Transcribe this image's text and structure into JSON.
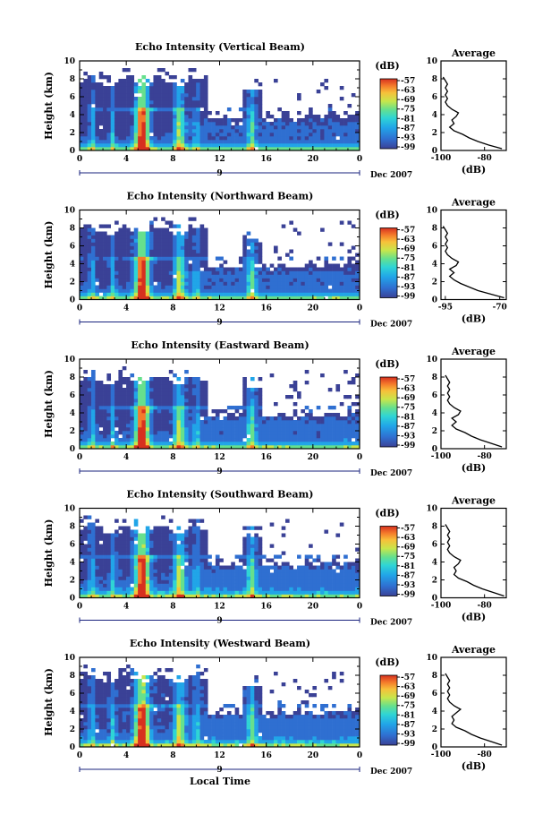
{
  "chart_data": [
    {
      "type": "heatmap",
      "title": "Echo Intensity (Vertical Beam)",
      "ylabel": "Height (km)",
      "xticks": [
        "0",
        "4",
        "8",
        "12",
        "16",
        "20",
        "0"
      ],
      "ylim": [
        0,
        10
      ],
      "yticks": [
        "0",
        "2",
        "4",
        "6",
        "8",
        "10"
      ],
      "date_label": "9",
      "month_label": "Dec 2007",
      "colorbar": {
        "unit": "(dB)",
        "ticks": [
          "-57",
          "-63",
          "-69",
          "-75",
          "-81",
          "-87",
          "-93",
          "-99"
        ]
      },
      "average": {
        "title": "Average",
        "xlabel": "(dB)",
        "xticks": [
          "-100",
          "-80"
        ],
        "xlim": [
          -100,
          -70
        ],
        "heights": [
          0.2,
          0.6,
          1.0,
          1.4,
          1.8,
          2.2,
          2.6,
          3.0,
          3.4,
          3.8,
          4.2,
          4.6,
          5.0,
          5.4,
          5.8,
          6.2,
          6.6,
          7.0,
          7.4,
          7.8,
          8.2
        ],
        "values": [
          -72,
          -78,
          -83,
          -87,
          -90,
          -94,
          -96,
          -94,
          -95,
          -93,
          -92,
          -95,
          -97,
          -98,
          -97,
          -98,
          -97,
          -98,
          -97,
          -98,
          -99
        ]
      }
    },
    {
      "type": "heatmap",
      "title": "Echo Intensity (Northward Beam)",
      "ylabel": "Height (km)",
      "xticks": [
        "0",
        "4",
        "8",
        "12",
        "16",
        "20",
        "0"
      ],
      "ylim": [
        0,
        10
      ],
      "yticks": [
        "0",
        "2",
        "4",
        "6",
        "8",
        "10"
      ],
      "date_label": "9",
      "month_label": "Dec 2007",
      "colorbar": {
        "unit": "(dB)",
        "ticks": [
          "-57",
          "-63",
          "-69",
          "-75",
          "-81",
          "-87",
          "-93",
          "-99"
        ]
      },
      "average": {
        "title": "Average",
        "xlabel": "(dB)",
        "xticks": [
          "-95",
          "-70"
        ],
        "xlim": [
          -97,
          -67
        ],
        "heights": [
          0.2,
          0.6,
          1.0,
          1.4,
          1.8,
          2.2,
          2.6,
          3.0,
          3.4,
          3.8,
          4.2,
          4.6,
          5.0,
          5.4,
          5.8,
          6.2,
          6.6,
          7.0,
          7.4,
          7.8,
          8.2
        ],
        "values": [
          -68,
          -74,
          -80,
          -84,
          -88,
          -91,
          -93,
          -91,
          -93,
          -90,
          -89,
          -92,
          -94,
          -95,
          -94,
          -95,
          -94,
          -95,
          -94,
          -95,
          -96
        ]
      }
    },
    {
      "type": "heatmap",
      "title": "Echo Intensity (Eastward Beam)",
      "ylabel": "Height (km)",
      "xticks": [
        "0",
        "4",
        "8",
        "12",
        "16",
        "20",
        "0"
      ],
      "ylim": [
        0,
        10
      ],
      "yticks": [
        "0",
        "2",
        "4",
        "6",
        "8",
        "10"
      ],
      "date_label": "9",
      "month_label": "Dec 2007",
      "colorbar": {
        "unit": "(dB)",
        "ticks": [
          "-57",
          "-63",
          "-69",
          "-75",
          "-81",
          "-87",
          "-93",
          "-99"
        ]
      },
      "average": {
        "title": "Average",
        "xlabel": "(dB)",
        "xticks": [
          "-100",
          "-80"
        ],
        "xlim": [
          -100,
          -70
        ],
        "heights": [
          0.2,
          0.6,
          1.0,
          1.4,
          1.8,
          2.2,
          2.6,
          3.0,
          3.4,
          3.8,
          4.2,
          4.6,
          5.0,
          5.4,
          5.8,
          6.2,
          6.6,
          7.0,
          7.4,
          7.8,
          8.2
        ],
        "values": [
          -72,
          -77,
          -82,
          -86,
          -89,
          -93,
          -95,
          -93,
          -95,
          -92,
          -91,
          -94,
          -96,
          -97,
          -96,
          -97,
          -96,
          -97,
          -96,
          -97,
          -98
        ]
      }
    },
    {
      "type": "heatmap",
      "title": "Echo Intensity (Southward Beam)",
      "ylabel": "Height (km)",
      "xticks": [
        "0",
        "4",
        "8",
        "12",
        "16",
        "20",
        "0"
      ],
      "ylim": [
        0,
        10
      ],
      "yticks": [
        "0",
        "2",
        "4",
        "6",
        "8",
        "10"
      ],
      "date_label": "9",
      "month_label": "Dec 2007",
      "colorbar": {
        "unit": "(dB)",
        "ticks": [
          "-57",
          "-63",
          "-69",
          "-75",
          "-81",
          "-87",
          "-93",
          "-99"
        ]
      },
      "average": {
        "title": "Average",
        "xlabel": "(dB)",
        "xticks": [
          "-100",
          "-80"
        ],
        "xlim": [
          -100,
          -70
        ],
        "heights": [
          0.2,
          0.6,
          1.0,
          1.4,
          1.8,
          2.2,
          2.6,
          3.0,
          3.4,
          3.8,
          4.2,
          4.6,
          5.0,
          5.4,
          5.8,
          6.2,
          6.6,
          7.0,
          7.4,
          7.8,
          8.2
        ],
        "values": [
          -71,
          -76,
          -81,
          -85,
          -88,
          -92,
          -94,
          -93,
          -94,
          -92,
          -91,
          -94,
          -96,
          -97,
          -96,
          -97,
          -96,
          -97,
          -96,
          -97,
          -98
        ]
      }
    },
    {
      "type": "heatmap",
      "title": "Echo Intensity (Westward Beam)",
      "ylabel": "Height (km)",
      "xticks": [
        "0",
        "4",
        "8",
        "12",
        "16",
        "20",
        "0"
      ],
      "ylim": [
        0,
        10
      ],
      "yticks": [
        "0",
        "2",
        "4",
        "6",
        "8",
        "10"
      ],
      "date_label": "9",
      "month_label": "Dec 2007",
      "xlabel": "Local Time",
      "colorbar": {
        "unit": "(dB)",
        "ticks": [
          "-57",
          "-63",
          "-69",
          "-75",
          "-81",
          "-87",
          "-93",
          "-99"
        ]
      },
      "average": {
        "title": "Average",
        "xlabel": "(dB)",
        "xticks": [
          "-100",
          "-80"
        ],
        "xlim": [
          -100,
          -70
        ],
        "heights": [
          0.2,
          0.6,
          1.0,
          1.4,
          1.8,
          2.2,
          2.6,
          3.0,
          3.4,
          3.8,
          4.2,
          4.6,
          5.0,
          5.4,
          5.8,
          6.2,
          6.6,
          7.0,
          7.4,
          7.8,
          8.2
        ],
        "values": [
          -72,
          -77,
          -82,
          -86,
          -89,
          -93,
          -95,
          -94,
          -95,
          -93,
          -91,
          -94,
          -96,
          -97,
          -96,
          -97,
          -96,
          -97,
          -96,
          -97,
          -98
        ]
      }
    }
  ],
  "colors": {
    "colormap": [
      "#3a4196",
      "#2f6fd1",
      "#21a5e8",
      "#2fd5d5",
      "#66e08d",
      "#c8e64b",
      "#f7c13a",
      "#f47a2b",
      "#d7301f"
    ],
    "background": "#ffffff",
    "axis": "#000000",
    "date_line": "#1a237e"
  }
}
